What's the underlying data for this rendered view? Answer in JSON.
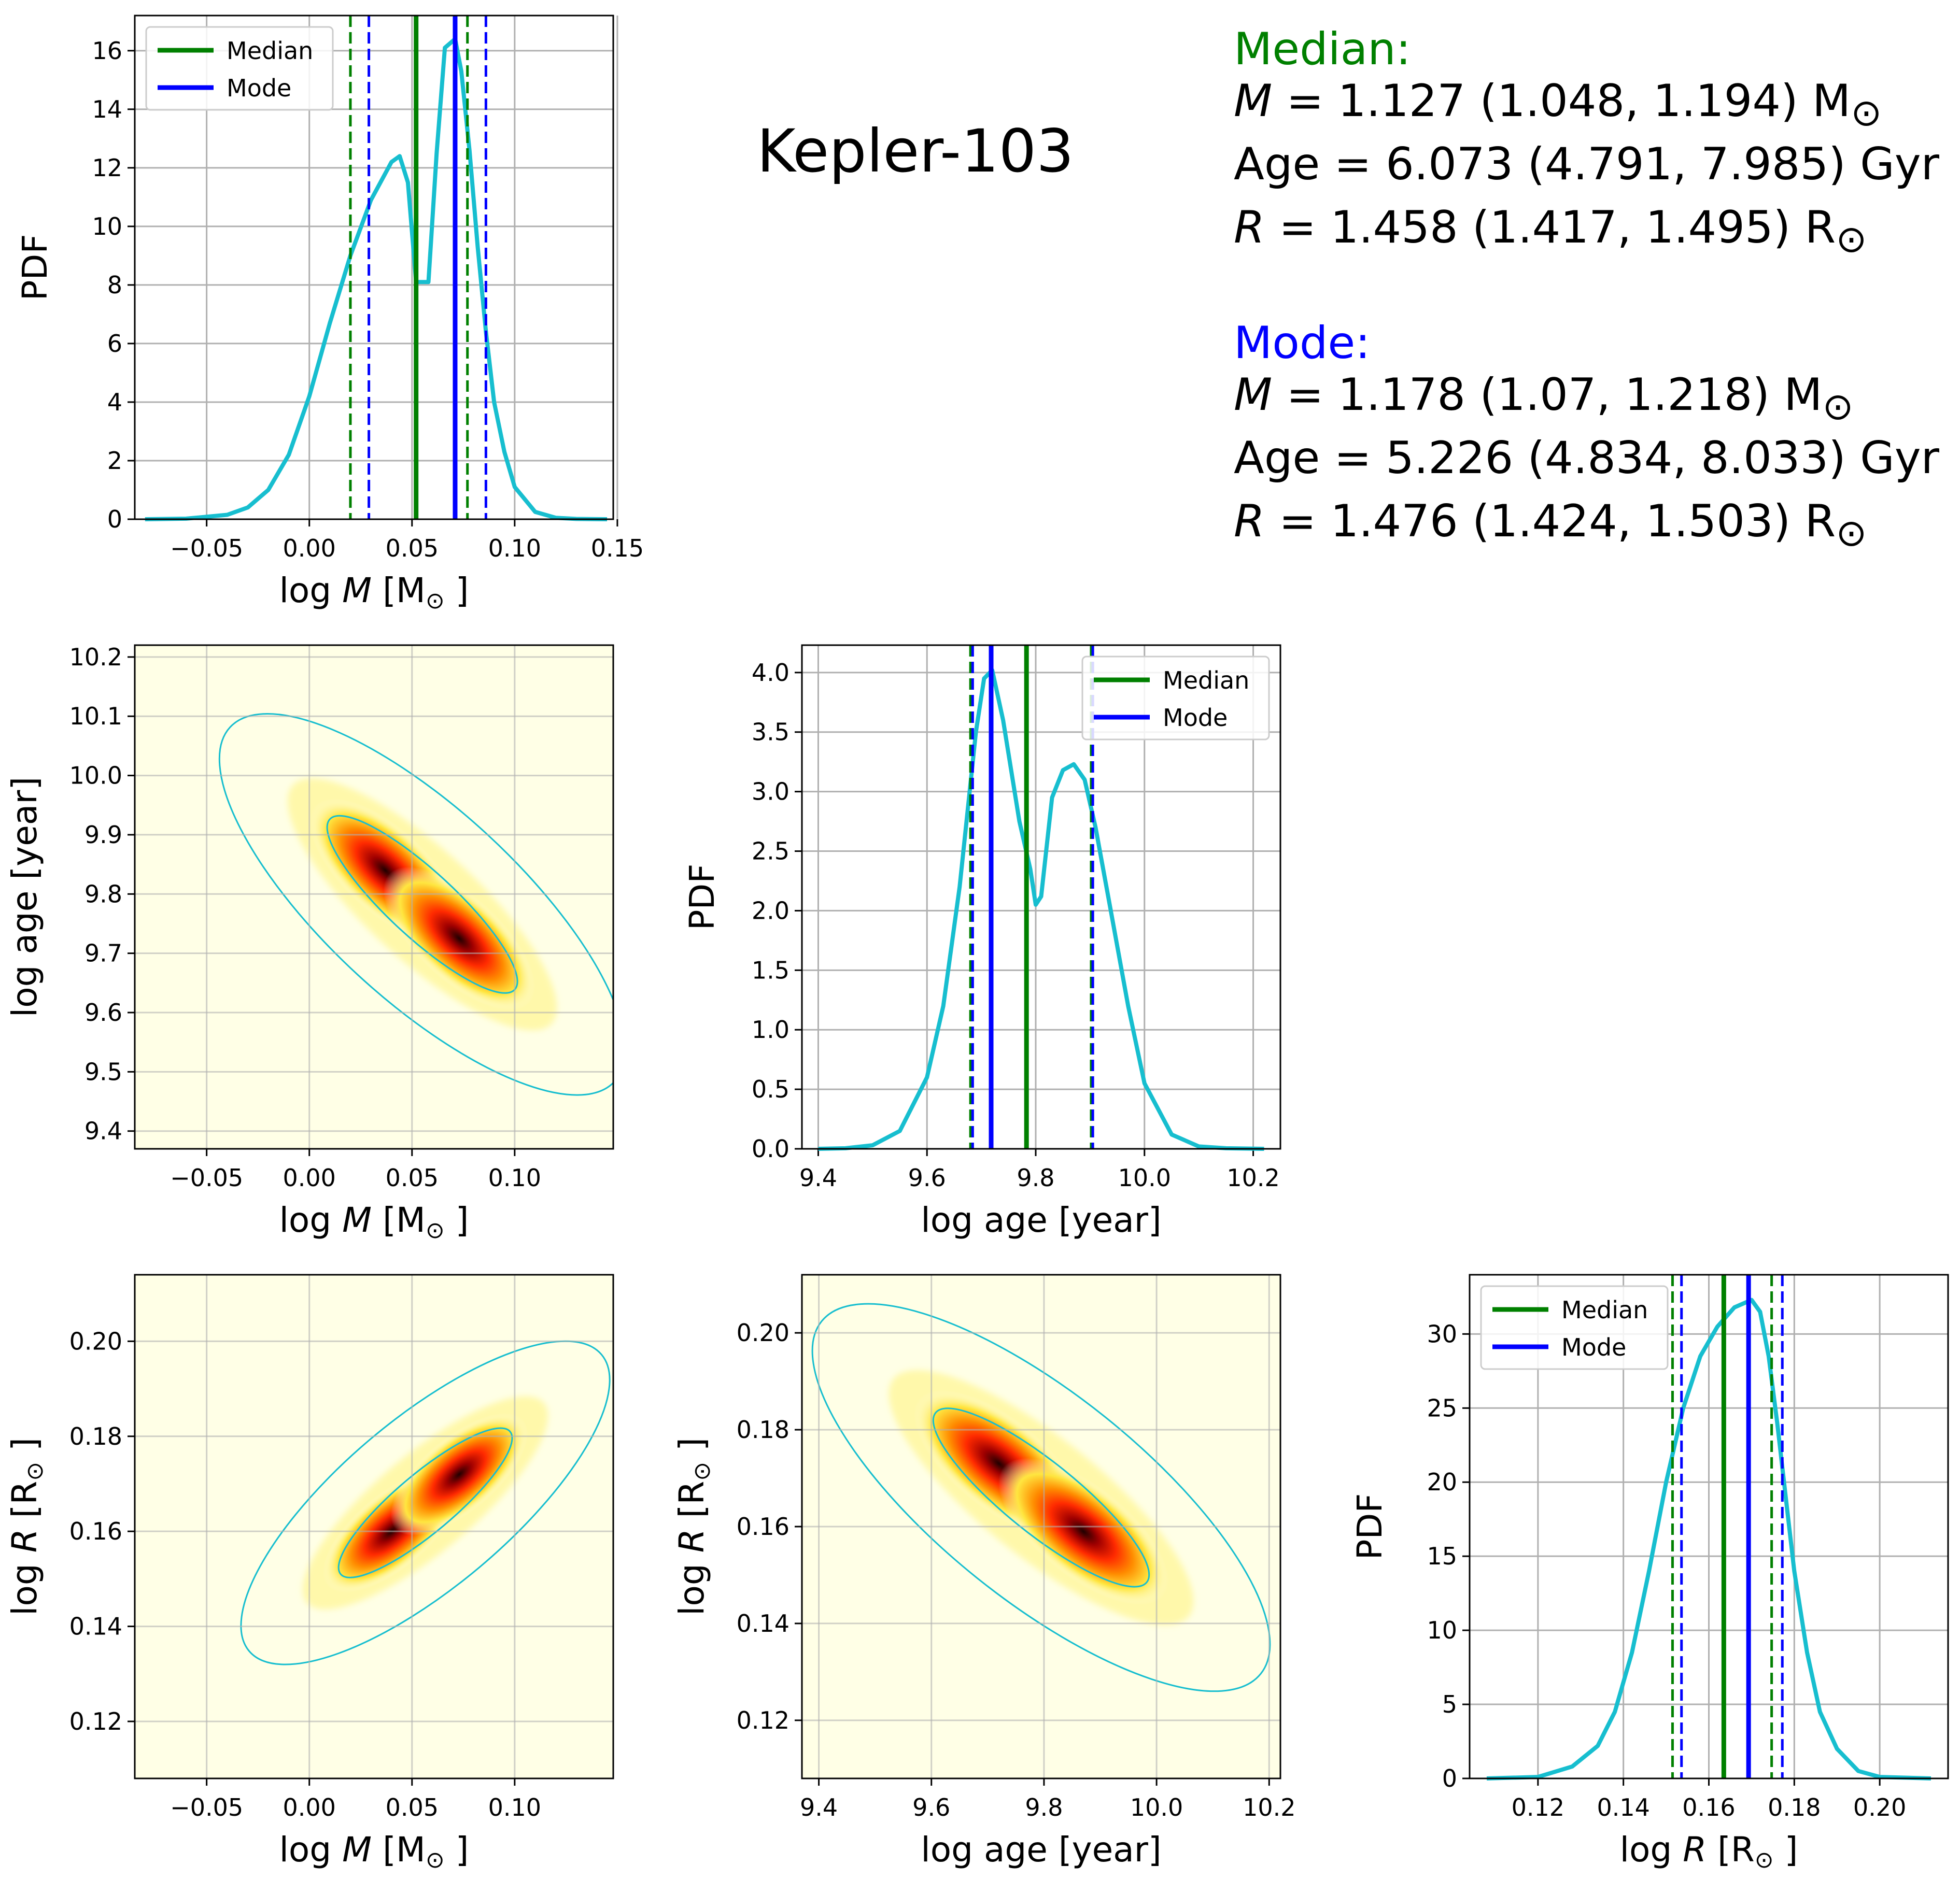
{
  "star_name": "Kepler-103",
  "summary": {
    "median_header": "Median:",
    "median_lines": [
      {
        "var": "M",
        "rest": " = 1.127 (1.048, 1.194) M",
        "sub": "⊙"
      },
      {
        "var": "",
        "rest": "Age = 6.073 (4.791, 7.985) Gyr",
        "sub": ""
      },
      {
        "var": "R",
        "rest": " = 1.458 (1.417, 1.495) R",
        "sub": "⊙"
      }
    ],
    "mode_header": "Mode:",
    "mode_lines": [
      {
        "var": "M",
        "rest": " = 1.178 (1.07, 1.218) M",
        "sub": "⊙"
      },
      {
        "var": "",
        "rest": "Age = 5.226 (4.834, 8.033) Gyr",
        "sub": ""
      },
      {
        "var": "R",
        "rest": " = 1.476 (1.424, 1.503) R",
        "sub": "⊙"
      }
    ]
  },
  "colors": {
    "median": "#008000",
    "mode": "#0000ff",
    "pdf": "#17becf",
    "grid": "#b0b0b0"
  },
  "legend": {
    "median": "Median",
    "mode": "Mode"
  },
  "chart_data": [
    {
      "id": "logM-pdf",
      "type": "line",
      "xlabel": "log M [M⊙]",
      "ylabel": "PDF",
      "xlim": [
        -0.085,
        0.148
      ],
      "ylim": [
        0,
        17.2
      ],
      "xticks": [
        -0.05,
        0.0,
        0.05,
        0.1,
        0.15
      ],
      "xtick_labels": [
        "−0.05",
        "0.00",
        "0.05",
        "0.10",
        "0.15"
      ],
      "yticks": [
        0,
        2,
        4,
        6,
        8,
        10,
        12,
        14,
        16
      ],
      "ytick_labels": [
        "0",
        "2",
        "4",
        "6",
        "8",
        "10",
        "12",
        "14",
        "16"
      ],
      "legend_position": "upper left",
      "median": 0.052,
      "median_interval": [
        0.02,
        0.077
      ],
      "mode": 0.071,
      "mode_interval": [
        0.029,
        0.086
      ],
      "x": [
        -0.08,
        -0.06,
        -0.04,
        -0.03,
        -0.02,
        -0.01,
        0.0,
        0.01,
        0.02,
        0.03,
        0.04,
        0.044,
        0.048,
        0.052,
        0.056,
        0.058,
        0.062,
        0.066,
        0.071,
        0.074,
        0.078,
        0.082,
        0.086,
        0.09,
        0.095,
        0.1,
        0.11,
        0.12,
        0.13,
        0.145
      ],
      "y": [
        0.0,
        0.02,
        0.15,
        0.4,
        1.0,
        2.2,
        4.2,
        6.7,
        9.0,
        10.9,
        12.2,
        12.4,
        11.5,
        8.1,
        8.1,
        8.1,
        12.5,
        16.1,
        16.4,
        15.3,
        12.6,
        9.3,
        6.4,
        4.0,
        2.3,
        1.1,
        0.25,
        0.05,
        0.01,
        0.0
      ]
    },
    {
      "id": "logage-pdf",
      "type": "line",
      "xlabel": "log age [year]",
      "ylabel": "PDF",
      "xlim": [
        9.37,
        10.25
      ],
      "ylim": [
        0,
        4.23
      ],
      "xticks": [
        9.4,
        9.6,
        9.8,
        10.0,
        10.2
      ],
      "xtick_labels": [
        "9.4",
        "9.6",
        "9.8",
        "10.0",
        "10.2"
      ],
      "yticks": [
        0,
        0.5,
        1.0,
        1.5,
        2.0,
        2.5,
        3.0,
        3.5,
        4.0
      ],
      "ytick_labels": [
        "0.0",
        "0.5",
        "1.0",
        "1.5",
        "2.0",
        "2.5",
        "3.0",
        "3.5",
        "4.0"
      ],
      "legend_position": "upper right",
      "median": 9.783,
      "median_interval": [
        9.68,
        9.902
      ],
      "mode": 9.718,
      "mode_interval": [
        9.684,
        9.905
      ],
      "x": [
        9.4,
        9.45,
        9.5,
        9.55,
        9.6,
        9.63,
        9.66,
        9.69,
        9.705,
        9.72,
        9.74,
        9.77,
        9.79,
        9.8,
        9.81,
        9.83,
        9.85,
        9.87,
        9.89,
        9.91,
        9.94,
        9.97,
        10.0,
        10.05,
        10.1,
        10.15,
        10.22
      ],
      "y": [
        0.0,
        0.005,
        0.03,
        0.15,
        0.6,
        1.2,
        2.2,
        3.5,
        3.95,
        4.02,
        3.6,
        2.75,
        2.35,
        2.05,
        2.12,
        2.95,
        3.18,
        3.23,
        3.1,
        2.7,
        1.95,
        1.2,
        0.55,
        0.12,
        0.02,
        0.005,
        0.0
      ]
    },
    {
      "id": "logR-pdf",
      "type": "line",
      "xlabel": "log R [R⊙]",
      "ylabel": "PDF",
      "xlim": [
        0.104,
        0.216
      ],
      "ylim": [
        0,
        34
      ],
      "xticks": [
        0.12,
        0.14,
        0.16,
        0.18,
        0.2
      ],
      "xtick_labels": [
        "0.12",
        "0.14",
        "0.16",
        "0.18",
        "0.20"
      ],
      "yticks": [
        0,
        5,
        10,
        15,
        20,
        25,
        30
      ],
      "ytick_labels": [
        "0",
        "5",
        "10",
        "15",
        "20",
        "25",
        "30"
      ],
      "legend_position": "upper left",
      "median": 0.1635,
      "median_interval": [
        0.1515,
        0.1747
      ],
      "mode": 0.1693,
      "mode_interval": [
        0.1536,
        0.1772
      ],
      "x": [
        0.108,
        0.12,
        0.128,
        0.134,
        0.138,
        0.142,
        0.146,
        0.15,
        0.154,
        0.158,
        0.162,
        0.166,
        0.17,
        0.172,
        0.174,
        0.176,
        0.178,
        0.18,
        0.183,
        0.186,
        0.19,
        0.195,
        0.2,
        0.212
      ],
      "y": [
        0.0,
        0.1,
        0.8,
        2.2,
        4.5,
        8.5,
        14.0,
        20.0,
        25.0,
        28.5,
        30.5,
        31.8,
        32.3,
        31.5,
        28.5,
        24.0,
        19.0,
        14.0,
        8.5,
        4.5,
        2.0,
        0.5,
        0.1,
        0.0
      ]
    },
    {
      "id": "logM-logage-density",
      "type": "heatmap",
      "xlabel": "log M [M⊙]",
      "ylabel": "log age [year]",
      "xlim": [
        -0.085,
        0.148
      ],
      "ylim": [
        9.37,
        10.22
      ],
      "xticks": [
        -0.05,
        0.0,
        0.05,
        0.1
      ],
      "xtick_labels": [
        "−0.05",
        "0.00",
        "0.05",
        "0.10"
      ],
      "yticks": [
        9.4,
        9.5,
        9.6,
        9.7,
        9.8,
        9.9,
        10.0,
        10.1,
        10.2
      ],
      "ytick_labels": [
        "9.4",
        "9.5",
        "9.6",
        "9.7",
        "9.8",
        "9.9",
        "10.0",
        "10.1",
        "10.2"
      ],
      "peaks": [
        {
          "x": 0.037,
          "y": 9.84
        },
        {
          "x": 0.073,
          "y": 9.725
        }
      ]
    },
    {
      "id": "logM-logR-density",
      "type": "heatmap",
      "xlabel": "log M [M⊙]",
      "ylabel": "log R [R⊙]",
      "xlim": [
        -0.085,
        0.148
      ],
      "ylim": [
        0.108,
        0.214
      ],
      "xticks": [
        -0.05,
        0.0,
        0.05,
        0.1
      ],
      "xtick_labels": [
        "−0.05",
        "0.00",
        "0.05",
        "0.10"
      ],
      "yticks": [
        0.12,
        0.14,
        0.16,
        0.18,
        0.2
      ],
      "ytick_labels": [
        "0.12",
        "0.14",
        "0.16",
        "0.18",
        "0.20"
      ],
      "peaks": [
        {
          "x": 0.04,
          "y": 0.16
        },
        {
          "x": 0.073,
          "y": 0.172
        }
      ]
    },
    {
      "id": "logage-logR-density",
      "type": "heatmap",
      "xlabel": "log age [year]",
      "ylabel": "log R [R⊙]",
      "xlim": [
        9.37,
        10.22
      ],
      "ylim": [
        0.108,
        0.212
      ],
      "xticks": [
        9.4,
        9.6,
        9.8,
        10.0,
        10.2
      ],
      "xtick_labels": [
        "9.4",
        "9.6",
        "9.8",
        "10.0",
        "10.2"
      ],
      "yticks": [
        0.12,
        0.14,
        0.16,
        0.18,
        0.2
      ],
      "ytick_labels": [
        "0.12",
        "0.14",
        "0.16",
        "0.18",
        "0.20"
      ],
      "peaks": [
        {
          "x": 9.72,
          "y": 0.173
        },
        {
          "x": 9.87,
          "y": 0.159
        }
      ]
    }
  ]
}
